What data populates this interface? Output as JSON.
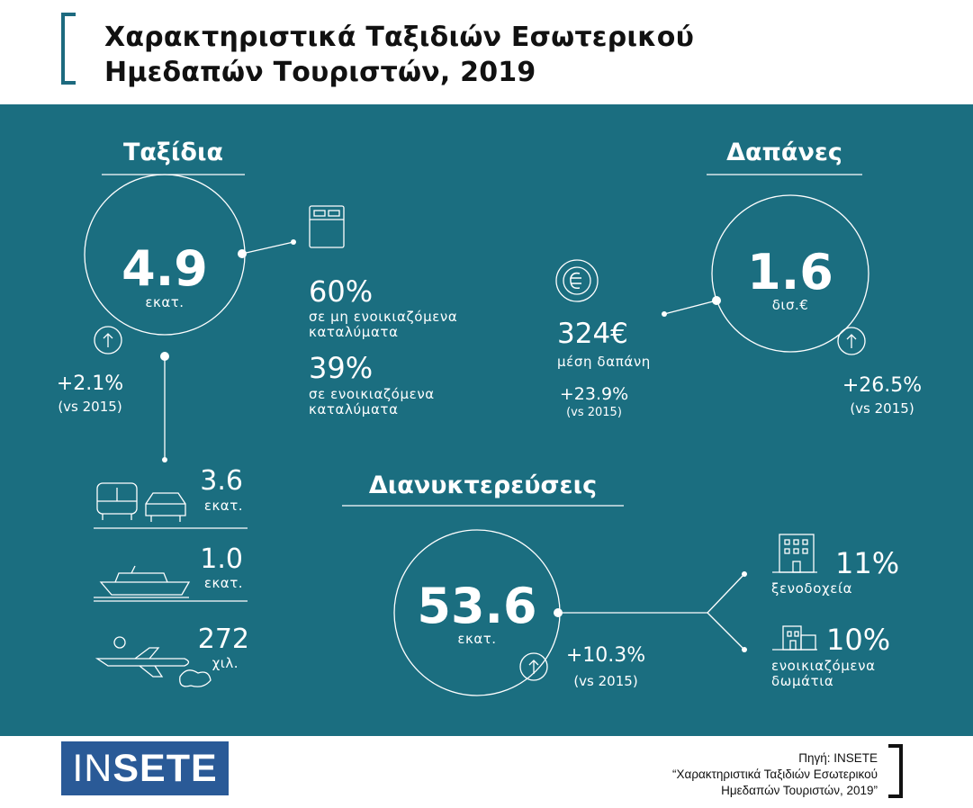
{
  "header": {
    "title_line1": "Χαρακτηριστικά Ταξιδιών Εσωτερικού",
    "title_line2": "Ημεδαπών Τουριστών, 2019"
  },
  "trips": {
    "heading": "Ταξίδια",
    "total": "4.9",
    "total_unit": "εκατ.",
    "growth": "+2.1%",
    "growth_note": "(vs 2015)",
    "non_rented_pct": "60%",
    "non_rented_line1": "σε μη ενοικιαζόμενα",
    "non_rented_line2": "καταλύματα",
    "rented_pct": "39%",
    "rented_line1": "σε ενοικιαζόμενα",
    "rented_line2": "καταλύματα",
    "road": {
      "value": "3.6",
      "unit": "εκατ."
    },
    "sea": {
      "value": "1.0",
      "unit": "εκατ."
    },
    "air": {
      "value": "272",
      "unit": "χιλ."
    }
  },
  "spending": {
    "heading": "Δαπάνες",
    "total": "1.6",
    "total_unit": "δισ.€",
    "growth": "+26.5%",
    "growth_note": "(vs 2015)",
    "euro_symbol": "€",
    "avg_value": "324€",
    "avg_label": "μέση δαπάνη",
    "avg_growth": "+23.9%",
    "avg_growth_note": "(vs 2015)"
  },
  "nights": {
    "heading": "Διανυκτερεύσεις",
    "total": "53.6",
    "total_unit": "εκατ.",
    "growth": "+10.3%",
    "growth_note": "(vs 2015)",
    "hotels_pct": "11%",
    "hotels_label": "ξενοδοχεία",
    "rooms_pct": "10%",
    "rooms_line1": "ενοικιαζόμενα",
    "rooms_line2": "δωμάτια"
  },
  "footer": {
    "logo_part1": "IN",
    "logo_part2": "SETE",
    "source_line1": "Πηγή: INSETE",
    "source_line2": "“Χαρακτηριστικά Ταξιδιών Εσωτερικού",
    "source_line3": "Ημεδαπών Τουριστών, 2019”"
  },
  "colors": {
    "panel": "#1b6e80",
    "accent": "#1d6a7f",
    "logo": "#2a5a97"
  },
  "icons": [
    "up-arrow-icon",
    "bed-icon",
    "euro-icon",
    "bus-icon",
    "car-icon",
    "ship-icon",
    "airplane-icon",
    "hotel-building-icon",
    "rooms-house-icon"
  ]
}
